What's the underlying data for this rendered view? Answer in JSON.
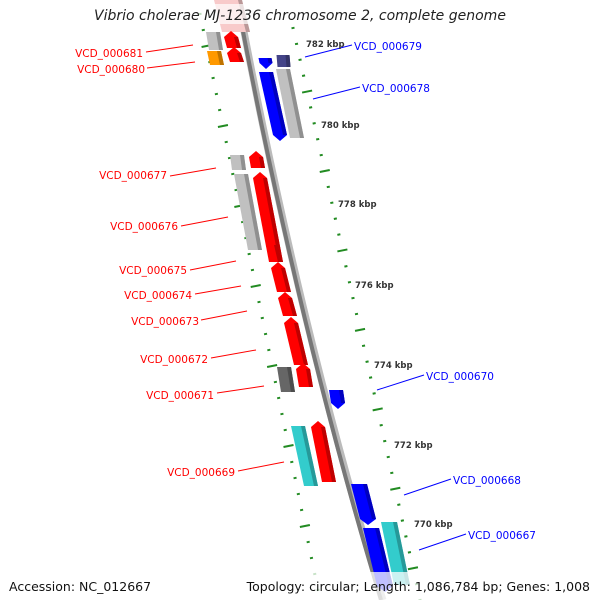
{
  "title": "Vibrio cholerae MJ-1236 chromosome 2, complete genome",
  "footer": {
    "accession": "Accession: NC_012667",
    "summary": "Topology: circular; Length: 1,086,784 bp; Genes: 1,008"
  },
  "scale_labels": [
    "782 kbp",
    "780 kbp",
    "778 kbp",
    "776 kbp",
    "774 kbp",
    "772 kbp",
    "770 kbp"
  ],
  "minus_strand_genes": [
    "VCD_000681",
    "VCD_000680",
    "VCD_000677",
    "VCD_000676",
    "VCD_000675",
    "VCD_000674",
    "VCD_000673",
    "VCD_000672",
    "VCD_000671",
    "VCD_000669"
  ],
  "plus_strand_genes": [
    "VCD_000679",
    "VCD_000678",
    "VCD_000670",
    "VCD_000668",
    "VCD_000667"
  ],
  "colors": {
    "minus": "#ff0000",
    "plus": "#0000ff",
    "tick": "#228b22",
    "backbone": "#888888"
  }
}
